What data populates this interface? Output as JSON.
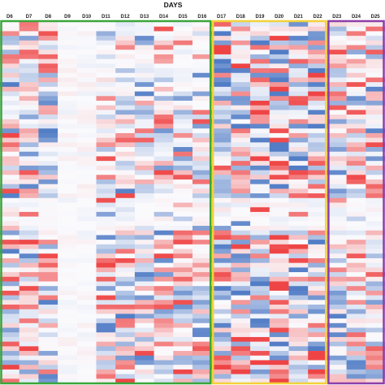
{
  "chart_data": {
    "type": "heatmap",
    "title": "DAYS",
    "columns": [
      "D6",
      "D7",
      "D8",
      "D9",
      "D10",
      "D11",
      "D12",
      "D13",
      "D14",
      "D15",
      "D16",
      "D17",
      "D18",
      "D19",
      "D20",
      "D21",
      "D22",
      "D23",
      "D24",
      "D25"
    ],
    "row_count": 78,
    "value_range": [
      -1,
      1
    ],
    "colors": {
      "negative": "#3f6fc0",
      "neutral": "#fafafd",
      "positive": "#ee3030"
    },
    "groups": [
      {
        "columns": [
          "D6",
          "D16"
        ],
        "color": "#3aa63a"
      },
      {
        "columns": [
          "D17",
          "D22"
        ],
        "color": "#f2d23a"
      },
      {
        "columns": [
          "D23",
          "D25"
        ],
        "color": "#8c3fa8"
      }
    ],
    "grid": false,
    "legend": "none"
  }
}
